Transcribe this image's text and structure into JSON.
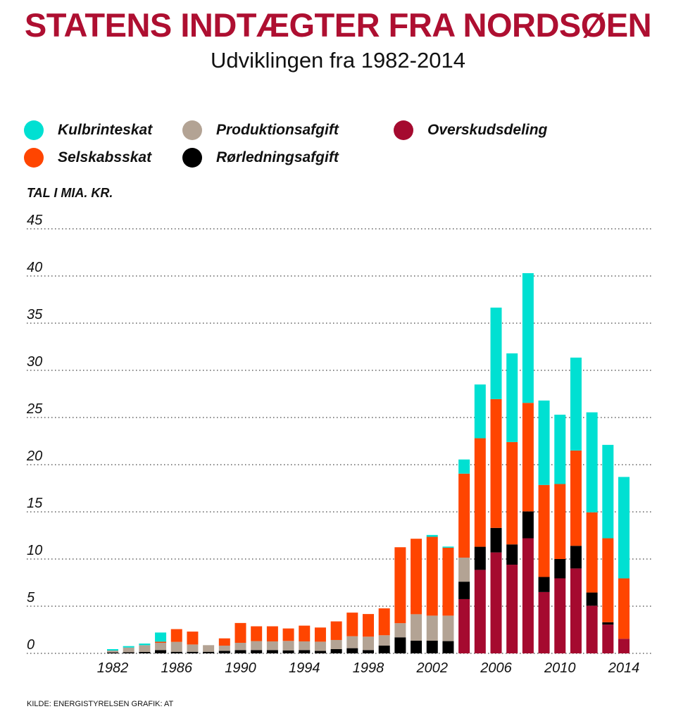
{
  "title": "STATENS INDTÆGTER FRA NORDSØEN",
  "subtitle": "Udviklingen fra 1982-2014",
  "unit_label": "TAL I MIA. KR.",
  "source": "KILDE: ENERGISTYRELSEN  GRAFIK: AT",
  "colors": {
    "title": "#ae0f31"
  },
  "legend": [
    {
      "label": "Kulbrinteskat",
      "color": "#00e0d2"
    },
    {
      "label": "Produktionsafgift",
      "color": "#b3a394"
    },
    {
      "label": "Overskudsdeling",
      "color": "#a50a2f"
    },
    {
      "label": "Selskabsskat",
      "color": "#ff4500"
    },
    {
      "label": "Rørledningsafgift",
      "color": "#000000"
    }
  ],
  "chart_data": {
    "type": "bar",
    "stacked": true,
    "title": "STATENS INDTÆGTER FRA NORDSØEN",
    "subtitle": "Udviklingen fra 1982-2014",
    "ylabel": "TAL I MIA. KR.",
    "ylim": [
      0,
      45
    ],
    "yticks": [
      0,
      5,
      10,
      15,
      20,
      25,
      30,
      35,
      40,
      45
    ],
    "xtick_labels": [
      "1982",
      "1986",
      "1990",
      "1994",
      "1998",
      "2002",
      "2006",
      "2010",
      "2014"
    ],
    "grid": true,
    "legend_position": "top",
    "categories": [
      1982,
      1983,
      1984,
      1985,
      1986,
      1987,
      1988,
      1989,
      1990,
      1991,
      1992,
      1993,
      1994,
      1995,
      1996,
      1997,
      1998,
      1999,
      2000,
      2001,
      2002,
      2003,
      2004,
      2005,
      2006,
      2007,
      2008,
      2009,
      2010,
      2011,
      2012,
      2013,
      2014
    ],
    "series": [
      {
        "name": "Overskudsdeling",
        "color": "#a50a2f",
        "values": [
          0,
          0,
          0,
          0,
          0,
          0,
          0,
          0,
          0,
          0,
          0,
          0,
          0,
          0,
          0,
          0,
          0,
          0,
          0,
          0,
          0,
          0,
          5.75,
          8.85,
          10.7,
          9.4,
          12.2,
          6.5,
          7.95,
          9.0,
          5.05,
          3.05,
          1.55
        ]
      },
      {
        "name": "Rørledningsafgift",
        "color": "#000000",
        "values": [
          0.1,
          0.12,
          0.15,
          0.35,
          0.17,
          0.17,
          0.17,
          0.27,
          0.35,
          0.35,
          0.35,
          0.32,
          0.35,
          0.27,
          0.45,
          0.55,
          0.35,
          0.82,
          1.7,
          1.35,
          1.35,
          1.3,
          1.85,
          2.45,
          2.6,
          2.15,
          2.85,
          1.6,
          2.05,
          2.4,
          1.4,
          0.25,
          0
        ]
      },
      {
        "name": "Produktionsafgift",
        "color": "#b3a394",
        "values": [
          0.2,
          0.5,
          0.72,
          0.77,
          1.05,
          0.77,
          0.7,
          0.55,
          0.77,
          0.95,
          0.92,
          1.0,
          0.92,
          0.97,
          0.97,
          1.27,
          1.42,
          1.1,
          1.5,
          2.8,
          2.65,
          2.7,
          2.55,
          0,
          0,
          0,
          0,
          0,
          0,
          0,
          0,
          0,
          0
        ]
      },
      {
        "name": "Selskabsskat",
        "color": "#ff4500",
        "values": [
          0,
          0,
          0,
          0.12,
          1.35,
          1.37,
          0,
          0.77,
          2.1,
          1.57,
          1.6,
          1.32,
          1.67,
          1.5,
          1.97,
          2.5,
          2.4,
          2.85,
          8.05,
          8.0,
          8.35,
          7.2,
          8.9,
          11.5,
          13.65,
          10.85,
          11.5,
          9.75,
          7.95,
          10.1,
          8.5,
          8.9,
          6.4
        ]
      },
      {
        "name": "Kulbrinteskat",
        "color": "#00e0d2",
        "values": [
          0.15,
          0.15,
          0.17,
          0.97,
          0,
          0,
          0,
          0,
          0,
          0,
          0,
          0,
          0,
          0,
          0,
          0,
          0,
          0,
          0,
          0,
          0.2,
          0.12,
          1.5,
          5.7,
          9.7,
          9.4,
          13.75,
          8.95,
          7.35,
          9.85,
          10.6,
          9.9,
          10.75
        ]
      }
    ]
  }
}
